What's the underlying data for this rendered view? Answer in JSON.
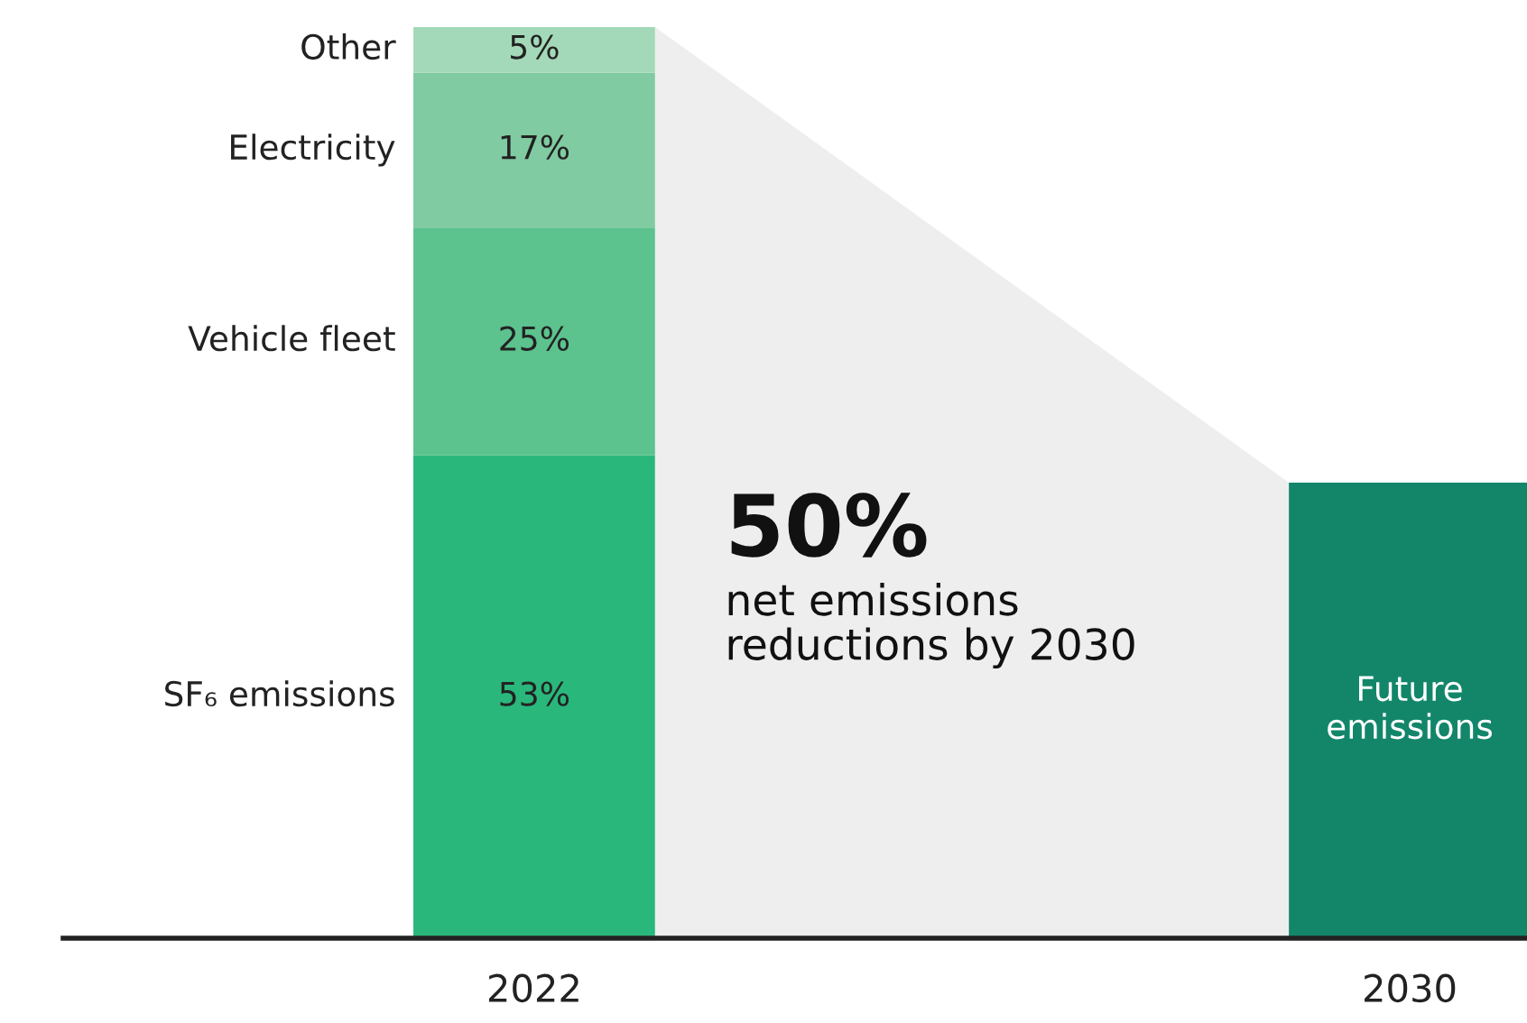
{
  "chart_data": {
    "type": "bar",
    "stacked": true,
    "categories": [
      "2022",
      "2030"
    ],
    "series": [
      {
        "name": "SF₆ emissions",
        "color": "#2ab77c",
        "values": [
          53,
          null
        ],
        "value_labels": [
          "53%",
          null
        ]
      },
      {
        "name": "Vehicle fleet",
        "color": "#5cc28e",
        "values": [
          25,
          null
        ],
        "value_labels": [
          "25%",
          null
        ]
      },
      {
        "name": "Electricity",
        "color": "#80cba1",
        "values": [
          17,
          null
        ],
        "value_labels": [
          "17%",
          null
        ]
      },
      {
        "name": "Other",
        "color": "#a3d9b8",
        "values": [
          5,
          null
        ],
        "value_labels": [
          "5%",
          null
        ]
      },
      {
        "name": "Future emissions",
        "color": "#13866a",
        "values": [
          null,
          50
        ]
      }
    ],
    "annotations": [
      "50%",
      "net emissions\nreductions by 2030"
    ],
    "legend": false,
    "grid": false
  }
}
